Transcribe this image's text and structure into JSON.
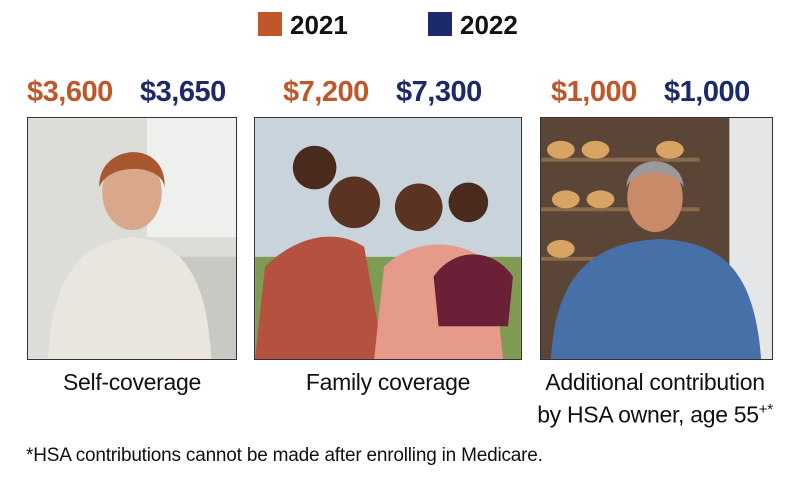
{
  "legend": [
    {
      "label": "2021",
      "color": "#c0562a"
    },
    {
      "label": "2022",
      "color": "#1c2a6b"
    }
  ],
  "panels": [
    {
      "amount_2021": "$3,600",
      "amount_2022": "$3,650",
      "label_lines": [
        "Self-coverage"
      ]
    },
    {
      "amount_2021": "$7,200",
      "amount_2022": "$7,300",
      "label_lines": [
        "Family coverage"
      ]
    },
    {
      "amount_2021": "$1,000",
      "amount_2022": "$1,000",
      "label_lines": [
        "Additional contribution",
        "by HSA owner, age 55"
      ],
      "label_superscript": "+*"
    }
  ],
  "footnote": "*HSA contributions cannot be made after enrolling in Medicare."
}
